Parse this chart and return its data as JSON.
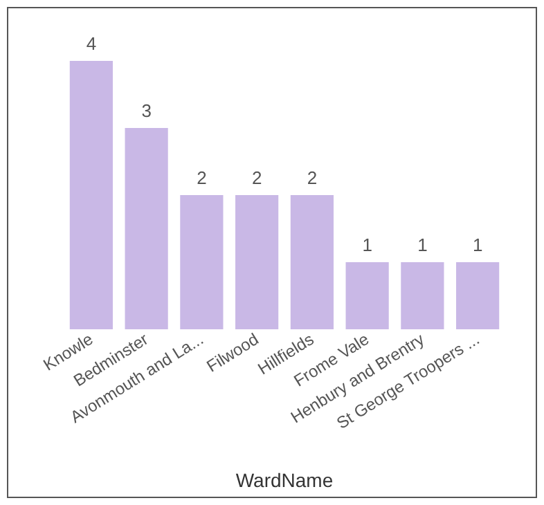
{
  "chart_data": {
    "type": "bar",
    "xlabel": "WardName",
    "categories": [
      "Knowle",
      "Bedminster",
      "Avonmouth and La...",
      "Filwood",
      "Hillfields",
      "Frome Vale",
      "Henbury and Brentry",
      "St George Troopers ..."
    ],
    "values": [
      4,
      3,
      2,
      2,
      2,
      1,
      1,
      1
    ],
    "color": "#c9b8e6",
    "data_labels": true
  }
}
